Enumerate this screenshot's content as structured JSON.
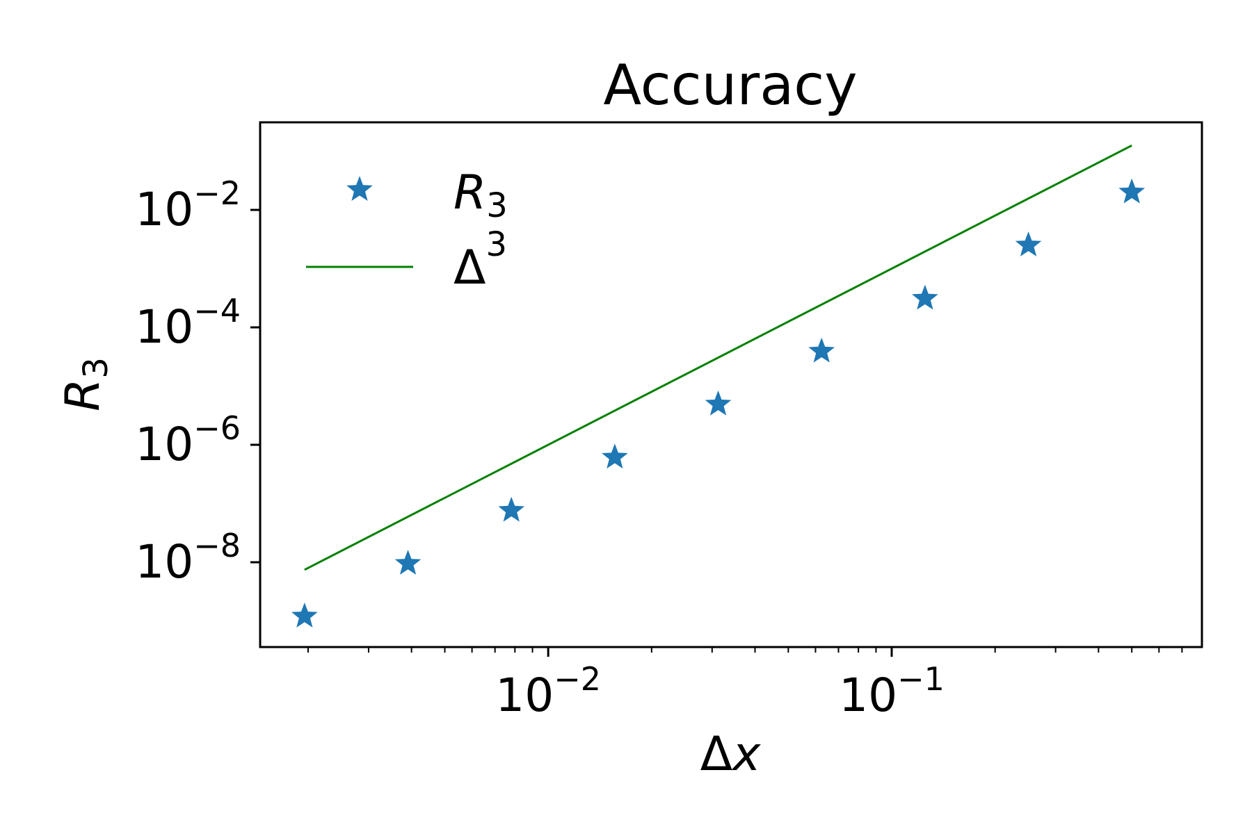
{
  "chart_data": {
    "type": "scatter",
    "title": "Accuracy",
    "xlabel": {
      "symbol": "Δ",
      "var": "x"
    },
    "ylabel": {
      "var": "R",
      "sub": "3"
    },
    "xscale": "log",
    "yscale": "log",
    "xlim": [
      0.00145,
      0.8
    ],
    "ylim": [
      3.6e-10,
      0.31
    ],
    "x_ticks": [
      {
        "value": 0.01,
        "base": "10",
        "exp": "−2"
      },
      {
        "value": 0.1,
        "base": "10",
        "exp": "−1"
      }
    ],
    "y_ticks": [
      {
        "value": 1e-08,
        "base": "10",
        "exp": "−8"
      },
      {
        "value": 1e-06,
        "base": "10",
        "exp": "−6"
      },
      {
        "value": 0.0001,
        "base": "10",
        "exp": "−4"
      },
      {
        "value": 0.01,
        "base": "10",
        "exp": "−2"
      }
    ],
    "grid": false,
    "legend_position": "upper-left",
    "series": [
      {
        "name": "R3",
        "legend_label": {
          "var": "R",
          "sub": "3"
        },
        "kind": "markers",
        "marker": "star",
        "color": "#1f77b4",
        "x": [
          0.001953,
          0.003906,
          0.007813,
          0.015625,
          0.03125,
          0.0625,
          0.125,
          0.25,
          0.5
        ],
        "y": [
          1.2e-09,
          9.5e-09,
          7.6e-08,
          6.1e-07,
          4.9e-06,
          3.9e-05,
          0.00031,
          0.0025,
          0.02
        ]
      },
      {
        "name": "Δ3",
        "legend_label": {
          "var": "Δ",
          "sup": "3"
        },
        "kind": "line",
        "color": "#008000",
        "x": [
          0.001953,
          0.5
        ],
        "y": [
          7.45e-09,
          0.125
        ]
      }
    ]
  }
}
